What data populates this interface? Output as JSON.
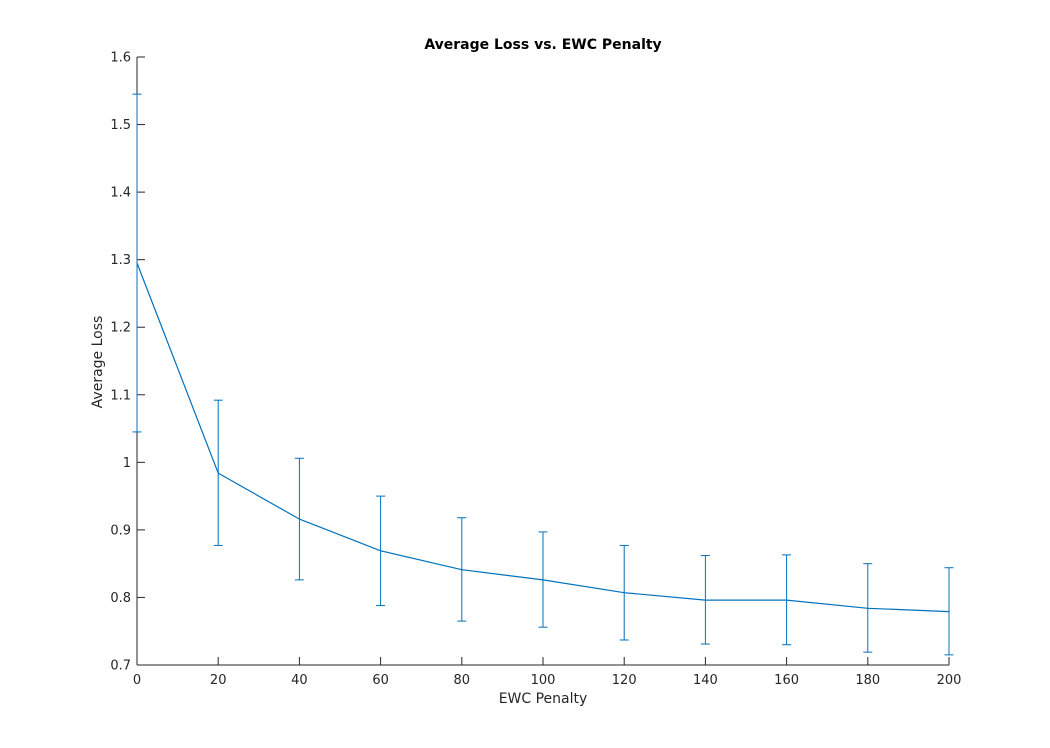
{
  "chart_data": {
    "type": "line",
    "title": "Average Loss vs. EWC Penalty",
    "xlabel": "EWC Penalty",
    "ylabel": "Average Loss",
    "xlim": [
      0,
      200
    ],
    "ylim": [
      0.7,
      1.6
    ],
    "xticks": [
      0,
      20,
      40,
      60,
      80,
      100,
      120,
      140,
      160,
      180,
      200
    ],
    "xtick_labels": [
      "0",
      "20",
      "40",
      "60",
      "80",
      "100",
      "120",
      "140",
      "160",
      "180",
      "200"
    ],
    "yticks": [
      0.7,
      0.8,
      0.9,
      1.0,
      1.1,
      1.2,
      1.3,
      1.4,
      1.5,
      1.6
    ],
    "ytick_labels": [
      "0.7",
      "0.8",
      "0.9",
      "1",
      "1.1",
      "1.2",
      "1.3",
      "1.4",
      "1.5",
      "1.6"
    ],
    "grid": false,
    "legend": false,
    "series": [
      {
        "color": "#0072BD",
        "x": [
          0,
          20,
          40,
          60,
          80,
          100,
          120,
          140,
          160,
          180,
          200
        ],
        "y": [
          1.295,
          0.984,
          0.916,
          0.869,
          0.841,
          0.826,
          0.807,
          0.796,
          0.796,
          0.784,
          0.779
        ],
        "error_lower": [
          1.045,
          0.877,
          0.826,
          0.788,
          0.765,
          0.756,
          0.737,
          0.731,
          0.73,
          0.719,
          0.715
        ],
        "error_upper": [
          1.545,
          1.092,
          1.006,
          0.95,
          0.918,
          0.897,
          0.877,
          0.862,
          0.863,
          0.85,
          0.844
        ]
      }
    ]
  },
  "colors": {
    "axis": "#262626",
    "line": "#0072BD"
  }
}
